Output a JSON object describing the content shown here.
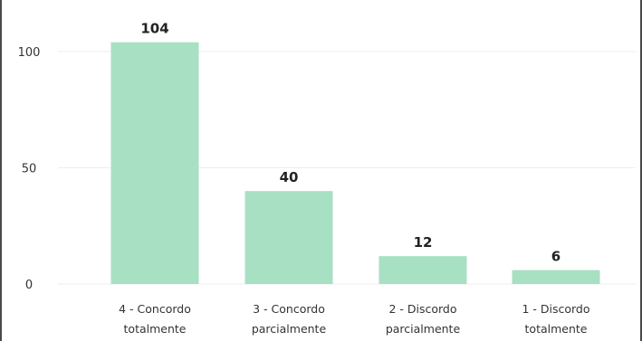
{
  "chart_data": {
    "type": "bar",
    "categories": [
      [
        "4 - Concordo",
        "totalmente"
      ],
      [
        "3 - Concordo",
        "parcialmente"
      ],
      [
        "2 - Discordo",
        "parcialmente"
      ],
      [
        "1 - Discordo",
        "totalmente"
      ]
    ],
    "values": [
      104,
      40,
      12,
      6
    ],
    "data_labels": [
      "104",
      "40",
      "12",
      "6"
    ],
    "yticks": [
      0,
      50,
      100
    ],
    "ytick_labels": [
      "0",
      "50",
      "100"
    ],
    "ylim": [
      0,
      104
    ],
    "title": "",
    "xlabel": "",
    "ylabel": "",
    "grid": true,
    "bar_color": "#a8e0c4",
    "grid_color": "#eeeeee"
  }
}
